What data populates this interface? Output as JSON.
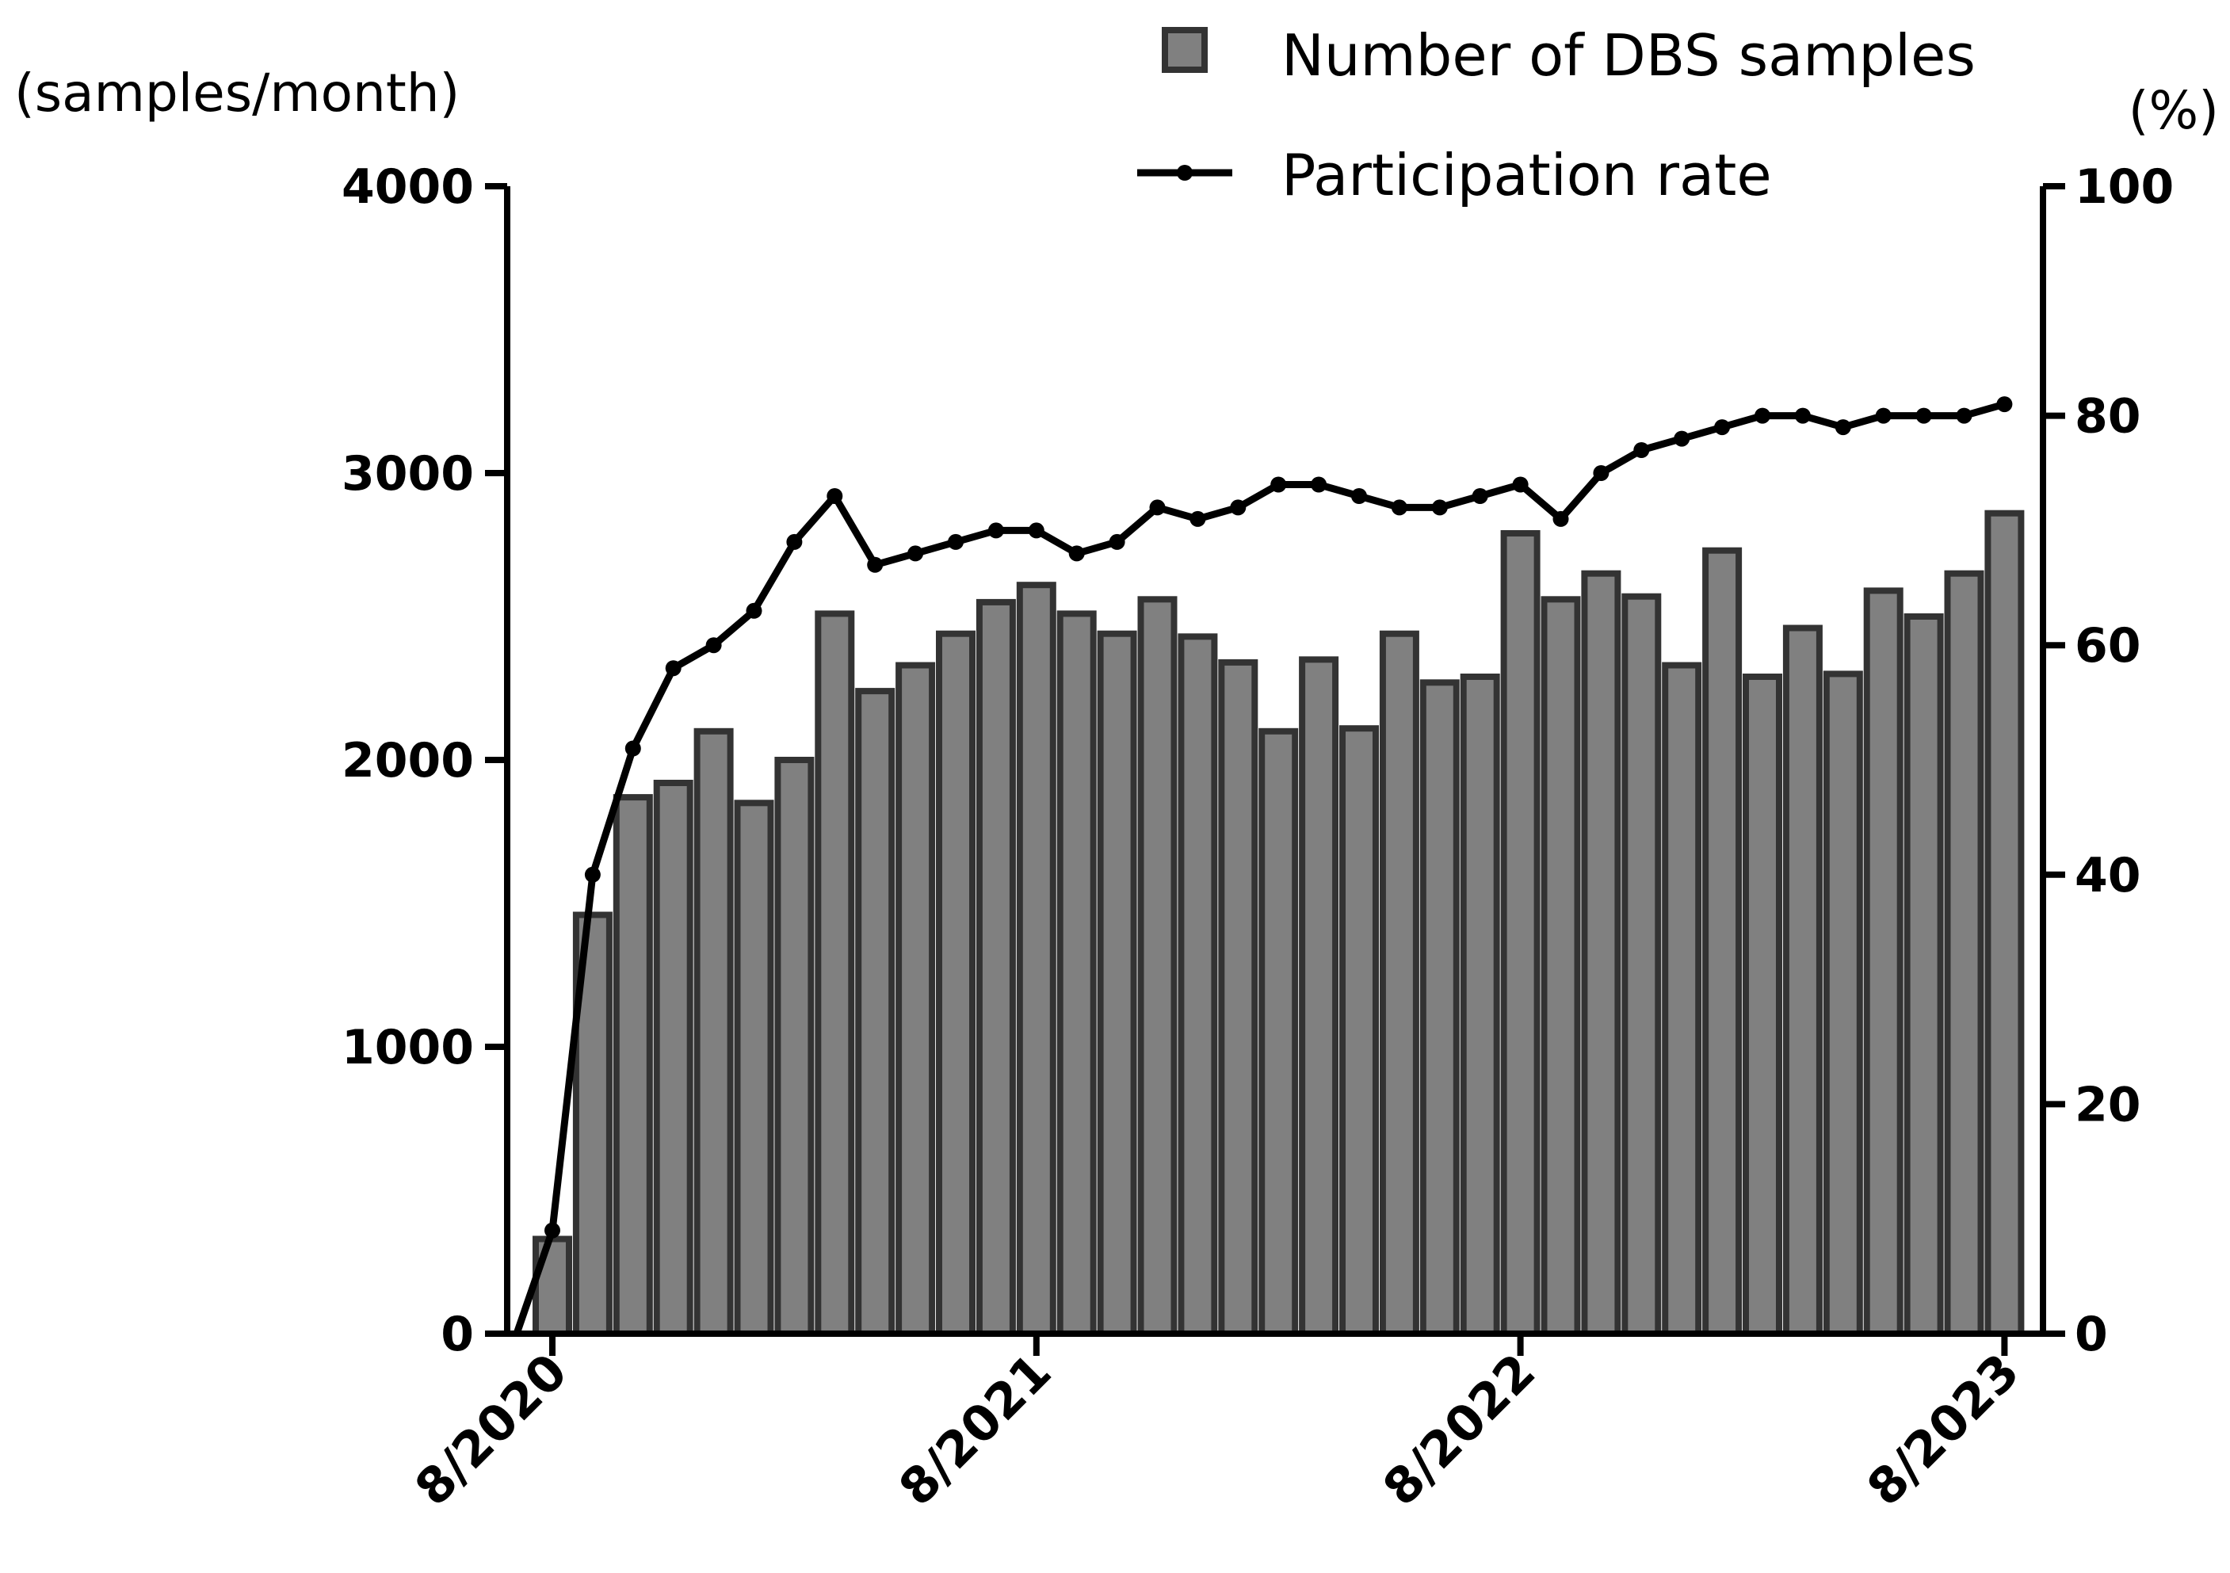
{
  "chart_data": {
    "type": "bar",
    "title": "",
    "xlabel": "",
    "x_tick_labels": [
      "8/2020",
      "8/2021",
      "8/2022",
      "8/2023"
    ],
    "left_axis": {
      "unit_label": "(samples/month)",
      "ylim": [
        0,
        4000
      ],
      "ticks": [
        "0",
        "1000",
        "2000",
        "3000",
        "4000"
      ]
    },
    "right_axis": {
      "unit_label": "(%)",
      "ylim": [
        0,
        100
      ],
      "ticks": [
        "0",
        "20",
        "40",
        "60",
        "80",
        "100"
      ]
    },
    "legend": {
      "placement": "top-right",
      "bar_label": "Number of DBS samples",
      "line_label": "Participation rate"
    },
    "months": [
      "8/2020",
      "9/2020",
      "10/2020",
      "11/2020",
      "12/2020",
      "1/2021",
      "2/2021",
      "3/2021",
      "4/2021",
      "5/2021",
      "6/2021",
      "7/2021",
      "8/2021",
      "9/2021",
      "10/2021",
      "11/2021",
      "12/2021",
      "1/2022",
      "2/2022",
      "3/2022",
      "4/2022",
      "5/2022",
      "6/2022",
      "7/2022",
      "8/2022",
      "9/2022",
      "10/2022",
      "11/2022",
      "12/2022",
      "1/2023",
      "2/2023",
      "3/2023",
      "4/2023",
      "5/2023",
      "6/2023",
      "7/2023",
      "8/2023"
    ],
    "series": [
      {
        "name": "Number of DBS samples",
        "kind": "bar",
        "axis": "left",
        "color": "#808080",
        "edge_color": "#333333",
        "values": [
          330,
          1460,
          1870,
          1920,
          2100,
          1850,
          2000,
          2510,
          2240,
          2330,
          2440,
          2550,
          2610,
          2510,
          2440,
          2560,
          2430,
          2340,
          2100,
          2350,
          2110,
          2440,
          2270,
          2290,
          2790,
          2560,
          2650,
          2570,
          2330,
          2730,
          2290,
          2460,
          2300,
          2590,
          2500,
          2650,
          2860
        ]
      },
      {
        "name": "Participation rate",
        "kind": "line",
        "axis": "right",
        "color": "#000000",
        "start_value": 0,
        "values": [
          9,
          40,
          51,
          58,
          60,
          63,
          69,
          73,
          67,
          68,
          69,
          70,
          70,
          68,
          69,
          72,
          71,
          72,
          74,
          74,
          73,
          72,
          72,
          73,
          74,
          71,
          75,
          77,
          78,
          79,
          80,
          80,
          79,
          80,
          80,
          80,
          81
        ]
      }
    ]
  }
}
